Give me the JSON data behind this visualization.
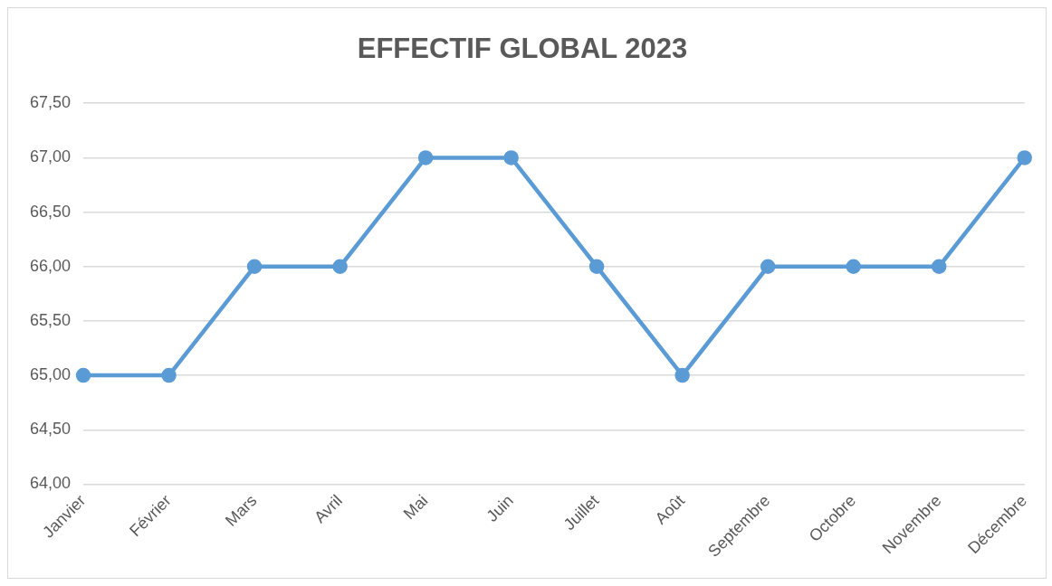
{
  "chart_data": {
    "type": "line",
    "title": "EFFECTIF GLOBAL 2023",
    "categories": [
      "Janvier",
      "Février",
      "Mars",
      "Avril",
      "Mai",
      "Juin",
      "Juillet",
      "Août",
      "Septembre",
      "Octobre",
      "Novembre",
      "Décembre"
    ],
    "series": [
      {
        "color": "#5b9bd5",
        "values": [
          65,
          65,
          66,
          66,
          67,
          67,
          66,
          65,
          66,
          66,
          66,
          67
        ]
      }
    ],
    "ylim": [
      64,
      67.5
    ],
    "yticks": [
      {
        "value": 64,
        "label": "64,00"
      },
      {
        "value": 64.5,
        "label": "64,50"
      },
      {
        "value": 65,
        "label": "65,00"
      },
      {
        "value": 65.5,
        "label": "65,50"
      },
      {
        "value": 66,
        "label": "66,00"
      },
      {
        "value": 66.5,
        "label": "66,50"
      },
      {
        "value": 67,
        "label": "67,00"
      },
      {
        "value": 67.5,
        "label": "67,50"
      }
    ],
    "grid": "y",
    "marker": "circle",
    "line_style": "solid",
    "legend": false
  }
}
